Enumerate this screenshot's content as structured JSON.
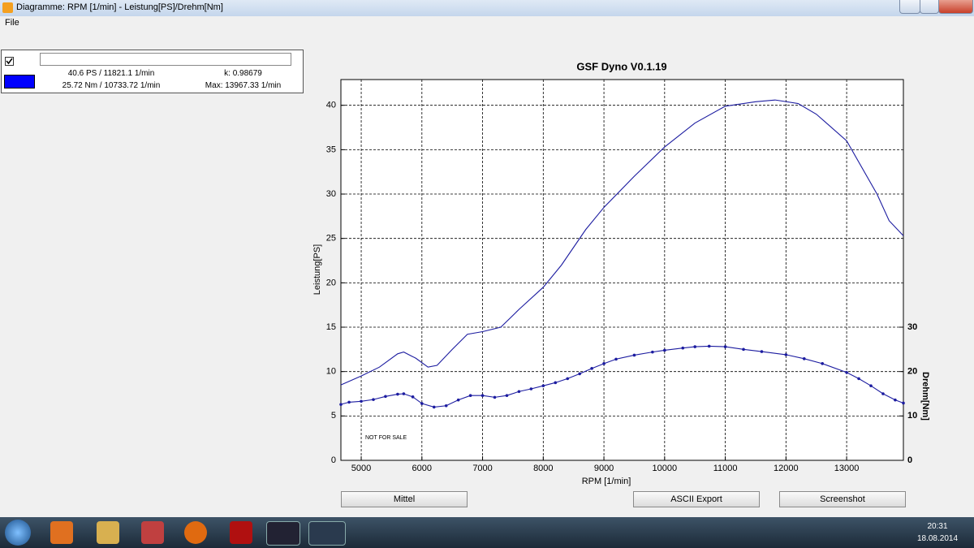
{
  "window": {
    "title": "Diagramme: RPM [1/min] - Leistung[PS]/Drehm[Nm]",
    "menu": [
      "File"
    ]
  },
  "legend_panel": {
    "power_info": "40.6 PS / 11821.1 1/min",
    "k": "k: 0.98679",
    "torque_info": "25.72 Nm / 10733.72 1/min",
    "max": "Max: 13967.33 1/min"
  },
  "chart_data": {
    "type": "line",
    "title": "GSF Dyno V0.1.19",
    "x_label": "RPM [1/min]",
    "y_label": "Leistung[PS]",
    "y2_label": "Drehm[Nm]",
    "annotation": "NOT FOR SALE",
    "xlim": [
      4665,
      13935
    ],
    "xticks": [
      5000,
      6000,
      7000,
      8000,
      9000,
      10000,
      11000,
      12000,
      13000
    ],
    "ylim": [
      0,
      42.9
    ],
    "yticks": [
      0,
      5,
      10,
      15,
      20,
      25,
      30,
      35,
      40
    ],
    "y2lim": [
      0,
      85.8
    ],
    "y2ticks": [
      0,
      10,
      20,
      30
    ],
    "grid": true,
    "series": [
      {
        "color": "#1c1ca0",
        "axis": "y",
        "markers": false,
        "x": [
          4665,
          5000,
          5300,
          5600,
          5700,
          5900,
          6100,
          6250,
          6500,
          6750,
          7000,
          7300,
          7600,
          8000,
          8300,
          8700,
          9000,
          9500,
          10000,
          10500,
          11000,
          11500,
          11821,
          12200,
          12500,
          13000,
          13500,
          13700,
          13935
        ],
        "values": [
          8.5,
          9.5,
          10.5,
          12.0,
          12.2,
          11.5,
          10.5,
          10.7,
          12.5,
          14.2,
          14.5,
          15.0,
          17.0,
          19.5,
          22.0,
          26.0,
          28.5,
          32.0,
          35.3,
          38.0,
          39.9,
          40.4,
          40.6,
          40.2,
          39.0,
          36.0,
          30.0,
          27.0,
          25.3
        ]
      },
      {
        "color": "#1c1ca0",
        "axis": "y2",
        "markers": true,
        "x": [
          4665,
          4800,
          5000,
          5200,
          5400,
          5600,
          5700,
          5850,
          6000,
          6200,
          6400,
          6600,
          6800,
          7000,
          7200,
          7400,
          7600,
          7800,
          8000,
          8200,
          8400,
          8600,
          8800,
          9000,
          9200,
          9500,
          9800,
          10000,
          10300,
          10500,
          10734,
          11000,
          11300,
          11600,
          12000,
          12300,
          12600,
          13000,
          13200,
          13400,
          13600,
          13800,
          13935
        ],
        "values": [
          12.6,
          13.1,
          13.3,
          13.7,
          14.4,
          14.9,
          15.0,
          14.3,
          12.8,
          12.0,
          12.3,
          13.6,
          14.6,
          14.6,
          14.2,
          14.6,
          15.5,
          16.1,
          16.8,
          17.5,
          18.4,
          19.5,
          20.7,
          21.8,
          22.8,
          23.7,
          24.4,
          24.8,
          25.3,
          25.6,
          25.72,
          25.6,
          25.0,
          24.5,
          23.8,
          22.9,
          21.8,
          19.8,
          18.4,
          16.8,
          15.0,
          13.6,
          12.9
        ]
      }
    ]
  },
  "buttons": [
    "Mittel",
    "ASCII Export",
    "Screenshot"
  ],
  "taskbar": {
    "time": "20:31",
    "date": "18.08.2014"
  }
}
